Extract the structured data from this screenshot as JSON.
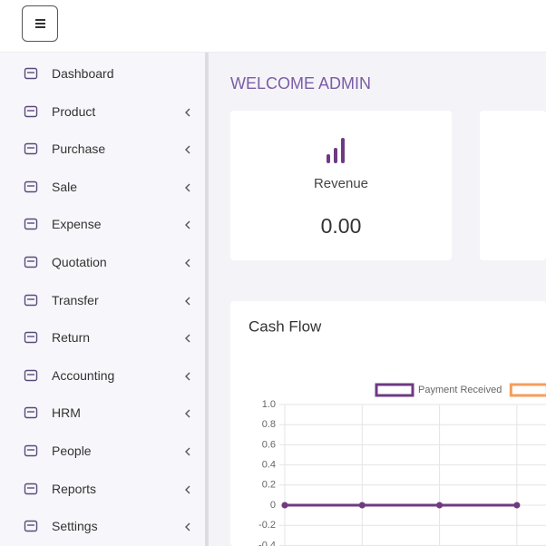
{
  "welcome": "WELCOME ADMIN",
  "sidebar": {
    "items": [
      "Dashboard",
      "Product",
      "Purchase",
      "Sale",
      "Expense",
      "Quotation",
      "Transfer",
      "Return",
      "Accounting",
      "HRM",
      "People",
      "Reports",
      "Settings"
    ]
  },
  "cards": [
    {
      "label": "Revenue",
      "value": "0.00"
    }
  ],
  "chart_data": {
    "type": "line",
    "title": "Cash Flow",
    "categories": [
      null,
      null,
      null,
      null
    ],
    "series": [
      {
        "name": "Payment Received",
        "color": "#6e3a84",
        "values": [
          0,
          0,
          0,
          0
        ]
      },
      {
        "color": "#f59d5b",
        "values": [
          0,
          0,
          0,
          0
        ]
      }
    ],
    "ylim": [
      -0.4,
      1.0
    ],
    "yticks": [
      {
        "value": 1.0,
        "label": "1.0"
      },
      0.8,
      0.6,
      0.4,
      0.2,
      0,
      -0.2,
      -0.4
    ],
    "grid": true,
    "legend": "top"
  }
}
